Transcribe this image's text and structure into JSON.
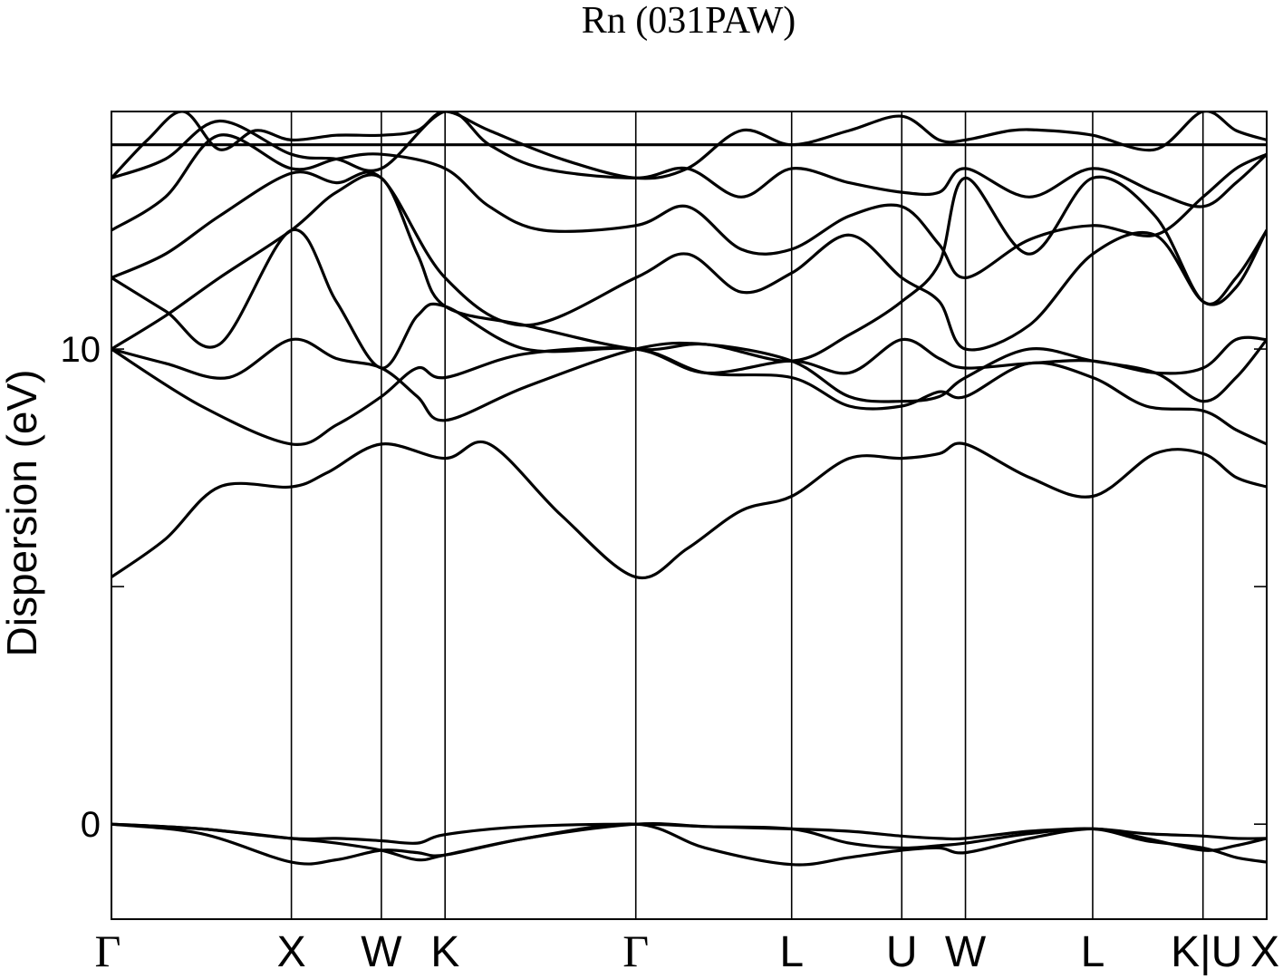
{
  "chart_data": {
    "type": "line",
    "title": "Rn (031PAW)",
    "ylabel": "Dispersion (eV)",
    "xlabel": "",
    "ylim": [
      -2,
      15
    ],
    "yticks": [
      0,
      5,
      10,
      15
    ],
    "ytick_labels": [
      "0",
      "",
      "10",
      ""
    ],
    "grid": false,
    "legend": "none",
    "high_symmetry_points": [
      {
        "label": "Γ",
        "x": 0.0
      },
      {
        "label": "X",
        "x": 1.0
      },
      {
        "label": "W",
        "x": 1.5
      },
      {
        "label": "K",
        "x": 1.854
      },
      {
        "label": "Γ",
        "x": 2.914
      },
      {
        "label": "L",
        "x": 3.78
      },
      {
        "label": "U",
        "x": 4.392
      },
      {
        "label": "W",
        "x": 4.746
      },
      {
        "label": "L",
        "x": 5.453
      },
      {
        "label": "K|U",
        "x": 6.066
      },
      {
        "label": "X",
        "x": 6.42
      }
    ],
    "series": [
      {
        "x": [
          0,
          0.5,
          1,
          1.25,
          1.5,
          1.7,
          1.854,
          2.3,
          2.914,
          3.3,
          3.78,
          4.1,
          4.392,
          4.6,
          4.746,
          5.1,
          5.453,
          5.75,
          6.066,
          6.25,
          6.42
        ],
        "y": [
          0,
          -0.2,
          -0.8,
          -0.75,
          -0.55,
          -0.6,
          -0.65,
          -0.3,
          0,
          -0.5,
          -0.85,
          -0.7,
          -0.55,
          -0.5,
          -0.6,
          -0.3,
          -0.1,
          -0.3,
          -0.55,
          -0.45,
          -0.3
        ]
      },
      {
        "x": [
          0,
          0.5,
          1,
          1.25,
          1.5,
          1.7,
          1.854,
          2.3,
          2.914,
          3.3,
          3.78,
          4.1,
          4.392,
          4.6,
          4.746,
          5.1,
          5.453,
          5.75,
          6.066,
          6.25,
          6.42
        ],
        "y": [
          0,
          -0.1,
          -0.3,
          -0.3,
          -0.35,
          -0.4,
          -0.22,
          -0.05,
          0,
          -0.05,
          -0.1,
          -0.15,
          -0.25,
          -0.3,
          -0.3,
          -0.15,
          -0.1,
          -0.2,
          -0.25,
          -0.3,
          -0.3
        ]
      },
      {
        "x": [
          0,
          0.5,
          1,
          1.25,
          1.5,
          1.7,
          1.854,
          2.3,
          2.914,
          3.3,
          3.78,
          4.1,
          4.392,
          4.6,
          4.746,
          5.1,
          5.453,
          5.75,
          6.066,
          6.25,
          6.42
        ],
        "y": [
          0,
          -0.1,
          -0.3,
          -0.4,
          -0.55,
          -0.75,
          -0.65,
          -0.3,
          0,
          -0.05,
          -0.1,
          -0.4,
          -0.5,
          -0.45,
          -0.4,
          -0.2,
          -0.1,
          -0.35,
          -0.5,
          -0.7,
          -0.8
        ]
      },
      {
        "x": [
          0,
          0.3,
          0.6,
          1,
          1.2,
          1.5,
          1.854,
          2.1,
          2.5,
          2.914,
          3.2,
          3.5,
          3.78,
          4.1,
          4.392,
          4.6,
          4.746,
          5.1,
          5.453,
          5.8,
          6.066,
          6.25,
          6.42
        ],
        "y": [
          5.2,
          6.0,
          7.1,
          7.1,
          7.4,
          8.0,
          7.7,
          8.0,
          6.5,
          5.2,
          5.8,
          6.6,
          6.9,
          7.7,
          7.7,
          7.8,
          8.0,
          7.3,
          6.9,
          7.8,
          7.8,
          7.3,
          7.1
        ]
      },
      {
        "x": [
          0,
          0.5,
          1,
          1.25,
          1.5,
          1.7,
          1.854,
          2.3,
          2.914,
          3.3,
          3.78,
          4.1,
          4.392,
          4.6,
          4.746,
          5.1,
          5.453,
          5.75,
          6.066,
          6.25,
          6.42
        ],
        "y": [
          10,
          8.8,
          8.0,
          8.4,
          9.0,
          9.6,
          9.4,
          9.9,
          10,
          9.5,
          9.4,
          8.8,
          8.8,
          9.1,
          9.0,
          9.7,
          9.4,
          8.8,
          8.7,
          8.3,
          8.0
        ]
      },
      {
        "x": [
          0,
          0.3,
          0.65,
          1,
          1.25,
          1.5,
          1.7,
          1.854,
          2.3,
          2.914,
          3.3,
          3.78,
          4.1,
          4.392,
          4.6,
          4.746,
          5.1,
          5.453,
          5.8,
          6.066,
          6.25,
          6.42
        ],
        "y": [
          10,
          9.7,
          9.4,
          10.2,
          9.8,
          9.6,
          9.0,
          8.5,
          9.2,
          10,
          10.1,
          9.75,
          9.0,
          8.9,
          9.0,
          9.4,
          10.0,
          9.75,
          9.5,
          8.9,
          9.4,
          10.2
        ]
      },
      {
        "x": [
          0,
          0.3,
          0.6,
          1,
          1.25,
          1.5,
          1.7,
          1.854,
          2.3,
          2.914,
          3.3,
          3.78,
          4.1,
          4.392,
          4.6,
          4.746,
          5.1,
          5.453,
          5.8,
          6.066,
          6.25,
          6.42
        ],
        "y": [
          11.5,
          10.8,
          10.1,
          12.5,
          11.0,
          9.6,
          10.7,
          10.9,
          10.0,
          10,
          9.5,
          9.75,
          9.5,
          10.2,
          9.8,
          9.6,
          9.7,
          9.75,
          9.5,
          9.6,
          10.2,
          10.2
        ]
      },
      {
        "x": [
          0,
          0.3,
          0.6,
          1,
          1.25,
          1.5,
          1.7,
          1.854,
          2.3,
          2.914,
          3.3,
          3.78,
          4.1,
          4.392,
          4.6,
          4.746,
          5.1,
          5.453,
          5.8,
          6.066,
          6.25,
          6.42
        ],
        "y": [
          10,
          10.7,
          11.5,
          12.5,
          13.3,
          13.6,
          12.0,
          10.9,
          10.5,
          10,
          10.1,
          9.75,
          10.3,
          11.0,
          11.8,
          13.6,
          12.0,
          13.6,
          12.8,
          11.0,
          11.5,
          12.5
        ]
      },
      {
        "x": [
          0,
          0.3,
          0.6,
          1,
          1.25,
          1.5,
          1.854,
          2.3,
          2.914,
          3.2,
          3.5,
          3.78,
          4.1,
          4.392,
          4.6,
          4.746,
          5.1,
          5.453,
          5.8,
          6.066,
          6.25,
          6.42
        ],
        "y": [
          11.5,
          12.0,
          12.8,
          13.7,
          13.5,
          13.6,
          11.5,
          10.5,
          11.5,
          12.0,
          11.2,
          11.6,
          12.4,
          11.5,
          11.0,
          10.0,
          10.5,
          12.0,
          12.4,
          11.0,
          11.3,
          12.5
        ]
      },
      {
        "x": [
          0,
          0.3,
          0.6,
          1,
          1.25,
          1.5,
          1.854,
          2.1,
          2.4,
          2.914,
          3.2,
          3.5,
          3.78,
          4.1,
          4.392,
          4.6,
          4.746,
          5.1,
          5.453,
          5.8,
          6.066,
          6.25,
          6.42
        ],
        "y": [
          12.5,
          13.2,
          14.5,
          13.8,
          14.0,
          14.1,
          13.8,
          13.0,
          12.5,
          12.6,
          13.0,
          12.1,
          12.1,
          12.8,
          13.0,
          12.2,
          11.5,
          12.3,
          12.6,
          12.4,
          13.2,
          13.8,
          14.1
        ]
      },
      {
        "x": [
          0,
          0.3,
          0.6,
          1,
          1.25,
          1.5,
          1.854,
          2.1,
          2.4,
          2.914,
          3.2,
          3.5,
          3.78,
          4.1,
          4.392,
          4.6,
          4.746,
          5.1,
          5.453,
          5.8,
          6.066,
          6.25,
          6.42
        ],
        "y": [
          13.6,
          14.0,
          14.8,
          14.1,
          14.0,
          13.8,
          15.0,
          14.3,
          13.8,
          13.6,
          13.8,
          13.2,
          13.8,
          13.5,
          13.3,
          13.3,
          13.8,
          13.2,
          13.8,
          13.3,
          13.0,
          13.5,
          14.1
        ]
      },
      {
        "x": [
          0,
          0.2,
          0.4,
          0.6,
          0.8,
          1,
          1.25,
          1.5,
          1.7,
          1.854,
          2.1,
          2.5,
          2.914,
          3.2,
          3.5,
          3.78,
          4.1,
          4.392,
          4.6,
          4.746,
          5.0,
          5.2,
          5.453,
          5.8,
          6.066,
          6.25,
          6.42
        ],
        "y": [
          13.6,
          14.4,
          15.0,
          14.2,
          14.6,
          14.4,
          14.5,
          14.5,
          14.6,
          15.0,
          14.6,
          14.0,
          13.6,
          13.8,
          14.6,
          14.3,
          14.6,
          14.9,
          14.4,
          14.4,
          14.6,
          14.6,
          14.5,
          14.2,
          15.0,
          14.6,
          14.4
        ]
      },
      {
        "x": [
          0,
          6.42
        ],
        "y": [
          14.3,
          14.3
        ]
      }
    ]
  }
}
